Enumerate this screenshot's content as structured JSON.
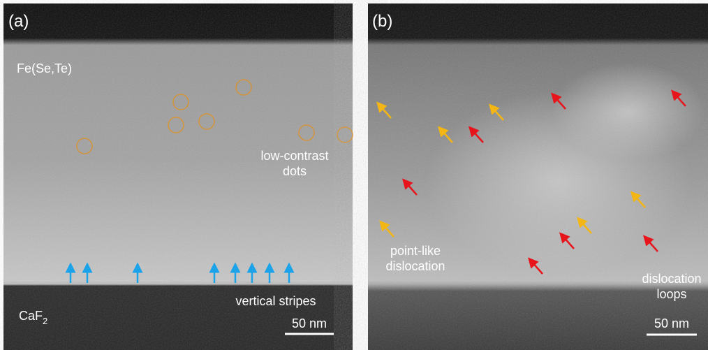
{
  "panels": [
    {
      "label": "(a)",
      "film": "Fe(Se,Te)",
      "substrate": {
        "text": "CaF",
        "subscript": "2"
      },
      "annotations": [
        [
          "low-contrast",
          "dots"
        ],
        [
          "vertical stripes"
        ]
      ],
      "scale_bar": "50 nm"
    },
    {
      "label": "(b)",
      "annotations": [
        [
          "point-like",
          "dislocation"
        ],
        [
          "dislocation",
          "loops"
        ]
      ],
      "scale_bar": "50 nm"
    }
  ]
}
